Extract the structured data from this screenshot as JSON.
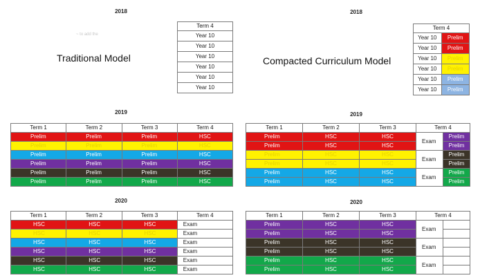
{
  "colors": {
    "red": "#e11414",
    "yellow": "#fff200",
    "cyan": "#14a8e6",
    "purple": "#7030a0",
    "brown": "#3b3428",
    "green": "#12a84a",
    "lightblue": "#8db4e2",
    "white": "#ffffff"
  },
  "left_2018": {
    "year": "2018",
    "faint_text": "~ to add the",
    "model": "Traditional Model",
    "header": "Term 4",
    "rows": [
      "Year 10",
      "Year 10",
      "Year 10",
      "Year 10",
      "Year 10",
      "Year 10"
    ]
  },
  "right_2018": {
    "year": "2018",
    "model": "Compacted Curriculum Model",
    "header": "Term 4",
    "rows": [
      {
        "a": "Year 10",
        "b": "Prelim",
        "color": "red"
      },
      {
        "a": "Year 10",
        "b": "Prelim",
        "color": "red"
      },
      {
        "a": "Year 10",
        "b": "Prelim",
        "color": "yellow"
      },
      {
        "a": "Year 10",
        "b": "Prelim",
        "color": "yellow"
      },
      {
        "a": "Year 10",
        "b": "Prelim",
        "color": "lightblue"
      },
      {
        "a": "Year 10",
        "b": "Prelim",
        "color": "lightblue"
      }
    ]
  },
  "left_2019": {
    "year": "2019",
    "headers": [
      "Term 1",
      "Term 2",
      "Term 3",
      "Term 4"
    ],
    "rows": [
      {
        "cells": [
          "Prelim",
          "Prelim",
          "Prelim",
          "HSC"
        ],
        "color": "red"
      },
      {
        "cells": [
          "Prelim",
          "Prelim",
          "Prelim",
          "HSC"
        ],
        "color": "yellow"
      },
      {
        "cells": [
          "Prelim",
          "Prelim",
          "Prelim",
          "HSC"
        ],
        "color": "cyan"
      },
      {
        "cells": [
          "Prelim",
          "Prelim",
          "Prelim",
          "HSC"
        ],
        "color": "purple"
      },
      {
        "cells": [
          "Prelim",
          "Prelim",
          "Prelim",
          "HSC"
        ],
        "color": "brown"
      },
      {
        "cells": [
          "Prelim",
          "Prelim",
          "Prelim",
          "HSC"
        ],
        "color": "green"
      }
    ]
  },
  "right_2019": {
    "year": "2019",
    "headers": [
      "Term 1",
      "Term 2",
      "Term 3",
      "Term 4"
    ],
    "exam_label": "Exam",
    "rows": [
      {
        "cells": [
          "Prelim",
          "HSC",
          "HSC"
        ],
        "color": "red",
        "t4": "Prelim",
        "t4color": "purple"
      },
      {
        "cells": [
          "Prelim",
          "HSC",
          "HSC"
        ],
        "color": "red",
        "t4": "Prelim",
        "t4color": "purple"
      },
      {
        "cells": [
          "Prelim",
          "HSC",
          "HSC"
        ],
        "color": "yellow",
        "t4": "Prelim",
        "t4color": "brown"
      },
      {
        "cells": [
          "Prelim",
          "HSC",
          "HSC"
        ],
        "color": "yellow",
        "t4": "Prelim",
        "t4color": "brown"
      },
      {
        "cells": [
          "Prelim",
          "HSC",
          "HSC"
        ],
        "color": "cyan",
        "t4": "Prelim",
        "t4color": "green"
      },
      {
        "cells": [
          "Prelim",
          "HSC",
          "HSC"
        ],
        "color": "cyan",
        "t4": "Prelim",
        "t4color": "green"
      }
    ]
  },
  "left_2020": {
    "year": "2020",
    "headers": [
      "Term 1",
      "Term 2",
      "Term 3",
      "Term 4"
    ],
    "rows": [
      {
        "cells": [
          "HSC",
          "HSC",
          "HSC"
        ],
        "color": "red",
        "t4": "Exam"
      },
      {
        "cells": [
          "HSC",
          "HSC",
          "HSC"
        ],
        "color": "yellow",
        "t4": "Exam"
      },
      {
        "cells": [
          "HSC",
          "HSC",
          "HSC"
        ],
        "color": "cyan",
        "t4": "Exam"
      },
      {
        "cells": [
          "HSC",
          "HSC",
          "HSC"
        ],
        "color": "purple",
        "t4": "Exam"
      },
      {
        "cells": [
          "HSC",
          "HSC",
          "HSC"
        ],
        "color": "brown",
        "t4": "Exam"
      },
      {
        "cells": [
          "HSC",
          "HSC",
          "HSC"
        ],
        "color": "green",
        "t4": "Exam"
      }
    ]
  },
  "right_2020": {
    "year": "2020",
    "headers": [
      "Term 1",
      "Term 2",
      "Term 3",
      "Term 4"
    ],
    "exam_label": "Exam",
    "rows": [
      {
        "cells": [
          "Prelim",
          "HSC",
          "HSC"
        ],
        "color": "purple"
      },
      {
        "cells": [
          "Prelim",
          "HSC",
          "HSC"
        ],
        "color": "purple"
      },
      {
        "cells": [
          "Prelim",
          "HSC",
          "HSC"
        ],
        "color": "brown"
      },
      {
        "cells": [
          "Prelim",
          "HSC",
          "HSC"
        ],
        "color": "brown"
      },
      {
        "cells": [
          "Prelim",
          "HSC",
          "HSC"
        ],
        "color": "green"
      },
      {
        "cells": [
          "Prelim",
          "HSC",
          "HSC"
        ],
        "color": "green"
      }
    ]
  }
}
